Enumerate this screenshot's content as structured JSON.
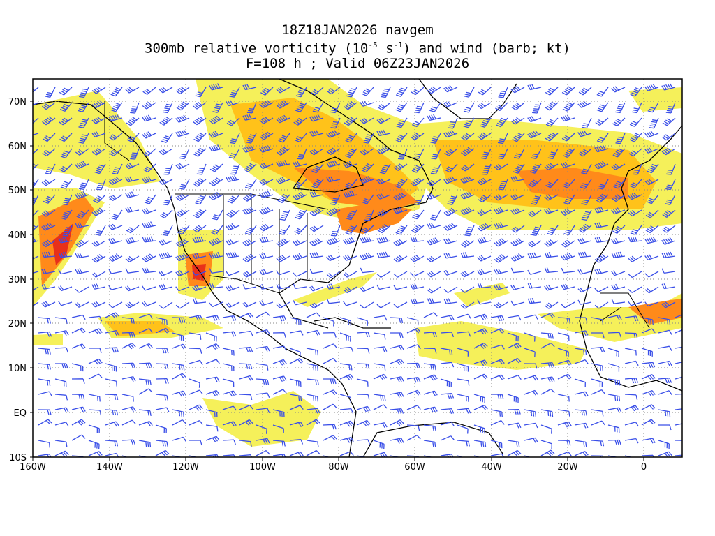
{
  "title": {
    "line1": "18Z18JAN2026 navgem",
    "line2_prefix": "300mb relative vorticity (10",
    "line2_exp1": "-5",
    "line2_mid": " s",
    "line2_exp2": "-1",
    "line2_suffix": ") and wind (barb; kt)",
    "line3": "F=108 h ; Valid 06Z23JAN2026"
  },
  "axes": {
    "lon_labels": [
      "160W",
      "140W",
      "120W",
      "100W",
      "80W",
      "60W",
      "40W",
      "20W",
      "0"
    ],
    "lat_labels": [
      "70N",
      "60N",
      "50N",
      "40N",
      "30N",
      "20N",
      "10N",
      "EQ",
      "10S"
    ]
  },
  "map": {
    "lon_range": [
      -160,
      10
    ],
    "lat_range": [
      -10,
      75
    ],
    "grid": "dotted",
    "colors": {
      "shade_light": "#f5f05a",
      "shade_mid": "#ffc21a",
      "shade_orange": "#ff8a1a",
      "shade_red": "#e8301a",
      "barbs": "#3a4fe8",
      "coast": "#000000"
    }
  }
}
